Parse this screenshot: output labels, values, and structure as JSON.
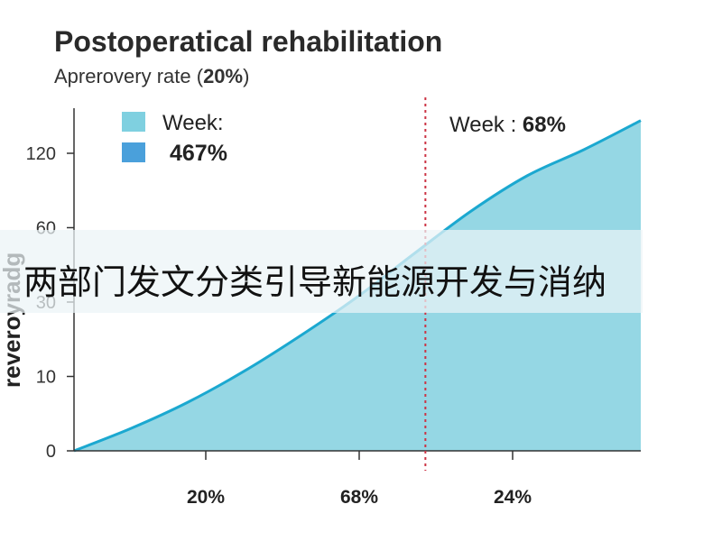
{
  "title": "Postoperatical rehabilitation",
  "subtitle_prefix": "Aprerovery rate (",
  "subtitle_value": "20%",
  "subtitle_suffix": ")",
  "overlay_text": "两部门发文分类引导新能源开发与消纳",
  "legend": [
    {
      "label": "Week:",
      "color": "#7fd0e0"
    },
    {
      "label": "467%",
      "color": "#4aa0db"
    }
  ],
  "annotation": {
    "label": "Week : ",
    "value": "68%"
  },
  "colors": {
    "line": "#1ba8d0",
    "fill": "#8fd5e3",
    "marker": "#cc3344",
    "axis": "#333333"
  },
  "chart_data": {
    "type": "area",
    "ylabel": "reveroyradg",
    "yticks": [
      "0",
      "10",
      "30",
      "60",
      "120"
    ],
    "xticks": [
      "20%",
      "68%",
      "24%"
    ],
    "curve_x": [
      0,
      0.1,
      0.2,
      0.3,
      0.4,
      0.5,
      0.6,
      0.7,
      0.8,
      0.9,
      1.0
    ],
    "curve_y_tick_index": [
      0,
      0.3,
      0.65,
      1.07,
      1.55,
      2.07,
      2.65,
      3.22,
      3.7,
      4.05,
      4.44
    ],
    "marker_x": 0.62,
    "grid": false,
    "legend_position": "top-left"
  }
}
